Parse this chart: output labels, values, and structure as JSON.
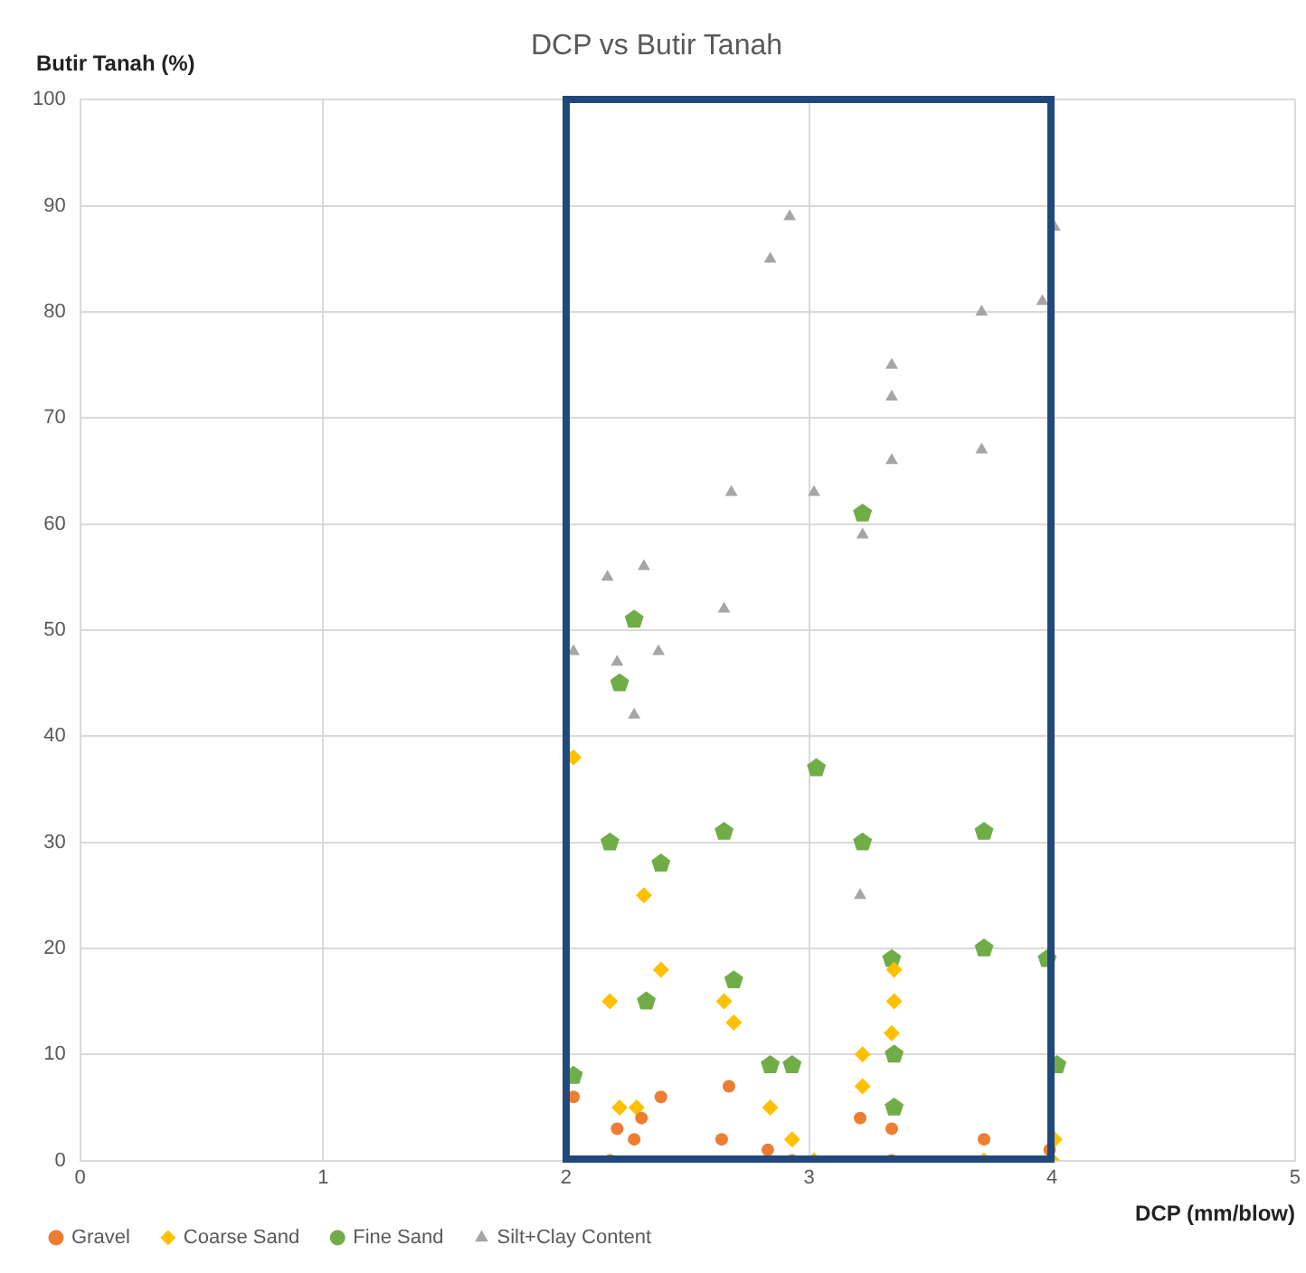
{
  "chart_data": {
    "type": "scatter",
    "title": "DCP vs Butir Tanah",
    "xlabel": "DCP (mm/blow)",
    "ylabel": "Butir Tanah (%)",
    "xlim": [
      0,
      5
    ],
    "xticks": [
      0,
      1,
      2,
      3,
      4,
      5
    ],
    "ylim": [
      0,
      100
    ],
    "yticks": [
      0,
      10,
      20,
      30,
      40,
      50,
      60,
      70,
      80,
      90,
      100
    ],
    "grid": true,
    "legend": "bottom left",
    "series": [
      {
        "name": "Gravel",
        "color": "#ed7d31",
        "marker": "circle",
        "x": [
          2.03,
          2.39,
          2.67,
          2.31,
          2.21,
          2.28,
          2.64,
          2.83,
          3.21,
          3.34,
          3.72,
          2.18,
          2.93,
          3.34,
          3.99
        ],
        "values": [
          6,
          6,
          7,
          4,
          3,
          2,
          2,
          1,
          4,
          3,
          2,
          0,
          0,
          0,
          1
        ]
      },
      {
        "name": "Coarse Sand",
        "color": "#ffc000",
        "marker": "diamond",
        "x": [
          2.03,
          2.32,
          2.39,
          2.18,
          2.65,
          2.69,
          3.35,
          3.35,
          3.34,
          3.22,
          3.22,
          2.22,
          2.29,
          2.84,
          2.93,
          4.01,
          3.02,
          3.72,
          4.0
        ],
        "values": [
          38,
          25,
          18,
          15,
          15,
          13,
          18,
          15,
          12,
          10,
          7,
          5,
          5,
          5,
          2,
          2,
          0,
          0,
          0
        ]
      },
      {
        "name": "Fine Sand",
        "color": "#70ad47",
        "x": [
          2.28,
          2.22,
          3.22,
          3.03,
          2.18,
          2.65,
          3.22,
          3.72,
          2.39,
          3.34,
          3.72,
          3.98,
          2.69,
          2.33,
          2.03,
          2.84,
          2.93,
          3.35,
          4.02,
          3.35
        ],
        "values": [
          51,
          45,
          61,
          37,
          30,
          31,
          30,
          31,
          28,
          19,
          20,
          19,
          17,
          15,
          8,
          9,
          9,
          10,
          9,
          5
        ]
      },
      {
        "name": "Silt+Clay Content",
        "color": "#a5a5a5",
        "marker": "triangle",
        "x": [
          2.92,
          2.84,
          4.01,
          3.71,
          3.96,
          3.34,
          3.34,
          3.71,
          3.34,
          2.68,
          3.02,
          3.22,
          2.32,
          2.17,
          2.65,
          2.03,
          2.38,
          2.21,
          2.28,
          3.21
        ],
        "values": [
          89,
          85,
          88,
          80,
          81,
          75,
          72,
          67,
          66,
          63,
          63,
          59,
          56,
          55,
          52,
          48,
          48,
          47,
          42,
          25
        ]
      }
    ]
  }
}
